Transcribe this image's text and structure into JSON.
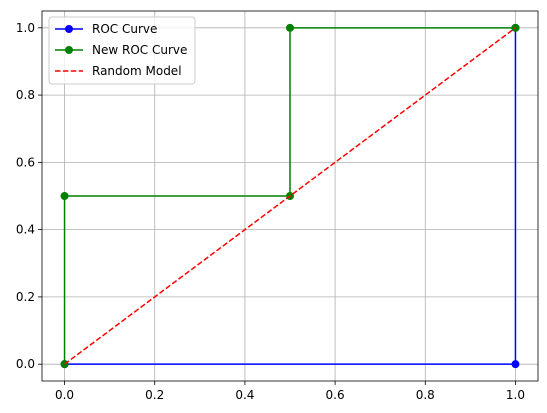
{
  "chart_data": {
    "type": "line",
    "title": "",
    "xlabel": "",
    "ylabel": "",
    "xlim": [
      -0.05,
      1.05
    ],
    "ylim": [
      -0.05,
      1.05
    ],
    "xticks": [
      0.0,
      0.2,
      0.4,
      0.6,
      0.8,
      1.0
    ],
    "yticks": [
      0.0,
      0.2,
      0.4,
      0.6,
      0.8,
      1.0
    ],
    "xtick_labels": [
      "0.0",
      "0.2",
      "0.4",
      "0.6",
      "0.8",
      "1.0"
    ],
    "ytick_labels": [
      "0.0",
      "0.2",
      "0.4",
      "0.6",
      "0.8",
      "1.0"
    ],
    "grid": true,
    "legend_position": "top-left",
    "series": [
      {
        "name": "ROC Curve",
        "color": "#0000ff",
        "line_style": "solid",
        "marker": "circle",
        "x": [
          0.0,
          1.0,
          1.0
        ],
        "y": [
          0.0,
          0.0,
          1.0
        ]
      },
      {
        "name": "New ROC Curve",
        "color": "#008000",
        "line_style": "solid",
        "marker": "circle",
        "x": [
          0.0,
          0.0,
          0.5,
          0.5,
          1.0
        ],
        "y": [
          0.0,
          0.5,
          0.5,
          1.0,
          1.0
        ]
      },
      {
        "name": "Random Model",
        "color": "#ff0000",
        "line_style": "dashed",
        "marker": "none",
        "x": [
          0.0,
          1.0
        ],
        "y": [
          0.0,
          1.0
        ]
      }
    ]
  }
}
